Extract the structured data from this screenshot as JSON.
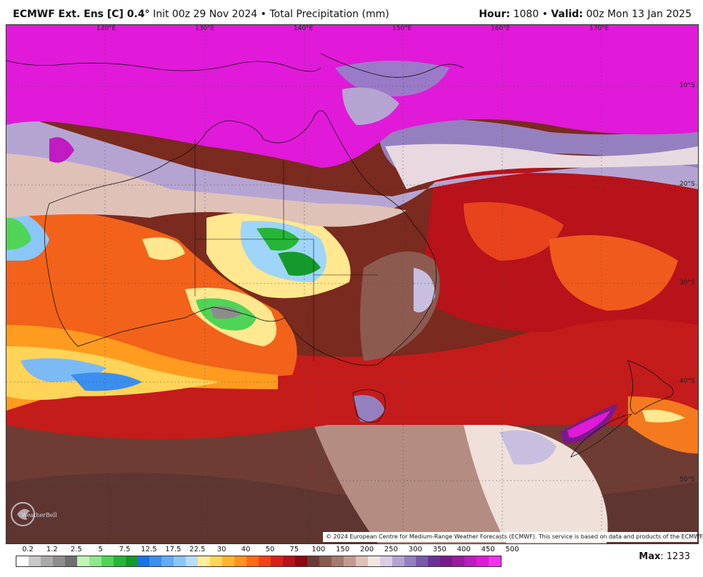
{
  "header": {
    "model": "ECMWF Ext. Ens [C] 0.4°",
    "init": "Init 00z 29 Nov 2024",
    "separator": "•",
    "field": "Total Precipitation (mm)",
    "hour_label": "Hour:",
    "hour_value": "1080",
    "valid_label": "Valid:",
    "valid_value": "00z Mon 13 Jan 2025"
  },
  "map": {
    "longitude_labels": [
      "120°E",
      "130°E",
      "140°E",
      "150°E",
      "160°E",
      "170°E"
    ],
    "latitude_labels": [
      "10°S",
      "20°S",
      "30°S",
      "40°S",
      "50°S"
    ],
    "copyright": "© 2024 European Centre for Medium-Range Weather Forecasts (ECMWF). This service is based on data and products of the ECMWF.",
    "watermark": "WeatherBell"
  },
  "legend": {
    "labels": [
      "0.2",
      "1.2",
      "2.5",
      "5",
      "7.5",
      "12.5",
      "17.5",
      "22.5",
      "30",
      "40",
      "50",
      "75",
      "100",
      "150",
      "200",
      "250",
      "300",
      "350",
      "400",
      "450",
      "500"
    ],
    "colors": [
      "#ffffff",
      "#c8c8c8",
      "#a9a9a9",
      "#8c8c8c",
      "#707070",
      "#c0f5b4",
      "#8ee88a",
      "#4fd456",
      "#27b536",
      "#149a2a",
      "#1a73e8",
      "#3a8ff0",
      "#62acf5",
      "#8ac7f8",
      "#b6defa",
      "#ffef9a",
      "#ffd55a",
      "#ffb52e",
      "#ff931f",
      "#ff6a17",
      "#f2421a",
      "#d8201c",
      "#b8111b",
      "#8d0a10",
      "#6c3b34",
      "#8a5a50",
      "#a67a6f",
      "#c39a8f",
      "#dfc1b8",
      "#f2e6e1",
      "#d9cde6",
      "#b5a4d2",
      "#9580bf",
      "#7a5aab",
      "#6a3296",
      "#7a1a8a",
      "#9a1aa0",
      "#c01ac2",
      "#e01ad8",
      "#f52ff0"
    ],
    "max_label": "Max",
    "max_value": "1233"
  }
}
